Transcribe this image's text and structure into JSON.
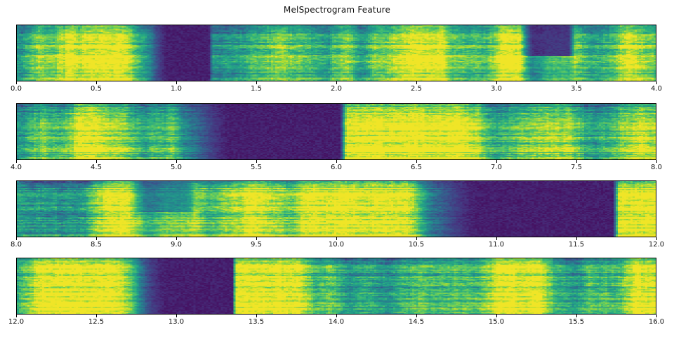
{
  "figure": {
    "title": "MelSpectrogram Feature",
    "background": "#ffffff",
    "axes_edge_color": "#000000",
    "tick_color": "#111111"
  },
  "colormap": {
    "name": "viridis",
    "stops": [
      "#440154",
      "#46327e",
      "#3b528b",
      "#2c728e",
      "#21918c",
      "#28ae80",
      "#5ec962",
      "#addc30",
      "#fde725"
    ]
  },
  "chart_data": [
    {
      "type": "heatmap",
      "subtype": "mel-spectrogram",
      "x_range": [
        0.0,
        4.0
      ],
      "x_ticks": [
        0.0,
        0.5,
        1.0,
        1.5,
        2.0,
        2.5,
        3.0,
        3.5,
        4.0
      ],
      "x_tick_labels": [
        "0.0",
        "0.5",
        "1.0",
        "1.5",
        "2.0",
        "2.5",
        "3.0",
        "3.5",
        "4.0"
      ],
      "xlabel": "",
      "ylabel": "",
      "y_ticks": [],
      "low_energy_regions": [
        {
          "start": 0.95,
          "end": 1.2,
          "fade_in": 0.22,
          "fade_out": 0.03,
          "depth": 1.0,
          "upper_bias": false
        },
        {
          "start": 3.24,
          "end": 3.45,
          "fade_in": 0.1,
          "fade_out": 0.06,
          "depth": 0.92,
          "upper_bias": true
        }
      ],
      "high_energy_bursts": [
        {
          "start": 0.3,
          "end": 0.52,
          "amp": 0.22
        },
        {
          "start": 2.6,
          "end": 2.9,
          "amp": 0.18
        }
      ],
      "texture_seed": 101
    },
    {
      "type": "heatmap",
      "subtype": "mel-spectrogram",
      "x_range": [
        4.0,
        8.0
      ],
      "x_ticks": [
        4.0,
        4.5,
        5.0,
        5.5,
        6.0,
        6.5,
        7.0,
        7.5,
        8.0
      ],
      "x_tick_labels": [
        "4.0",
        "4.5",
        "5.0",
        "5.5",
        "6.0",
        "6.5",
        "7.0",
        "7.5",
        "8.0"
      ],
      "xlabel": "",
      "ylabel": "",
      "y_ticks": [],
      "low_energy_regions": [
        {
          "start": 5.35,
          "end": 6.02,
          "fade_in": 0.45,
          "fade_out": 0.05,
          "depth": 1.0,
          "upper_bias": false
        }
      ],
      "high_energy_bursts": [
        {
          "start": 4.15,
          "end": 4.4,
          "amp": 0.22
        },
        {
          "start": 5.05,
          "end": 5.25,
          "amp": 0.18
        }
      ],
      "texture_seed": 202
    },
    {
      "type": "heatmap",
      "subtype": "mel-spectrogram",
      "x_range": [
        8.0,
        12.0
      ],
      "x_ticks": [
        8.0,
        8.5,
        9.0,
        9.5,
        10.0,
        10.5,
        11.0,
        11.5,
        12.0
      ],
      "x_tick_labels": [
        "8.0",
        "8.5",
        "9.0",
        "9.5",
        "10.0",
        "10.5",
        "11.0",
        "11.5",
        "12.0"
      ],
      "xlabel": "",
      "ylabel": "",
      "y_ticks": [],
      "low_energy_regions": [
        {
          "start": 8.82,
          "end": 9.05,
          "fade_in": 0.15,
          "fade_out": 0.12,
          "depth": 0.55,
          "upper_bias": true
        },
        {
          "start": 10.9,
          "end": 11.73,
          "fade_in": 0.55,
          "fade_out": 0.04,
          "depth": 1.0,
          "upper_bias": false
        }
      ],
      "high_energy_bursts": [
        {
          "start": 11.76,
          "end": 12.0,
          "amp": 0.35
        },
        {
          "start": 8.45,
          "end": 8.65,
          "amp": 0.18
        }
      ],
      "texture_seed": 303
    },
    {
      "type": "heatmap",
      "subtype": "mel-spectrogram",
      "x_range": [
        12.0,
        16.0
      ],
      "x_ticks": [
        12.0,
        12.5,
        13.0,
        13.5,
        14.0,
        14.5,
        15.0,
        15.5,
        16.0
      ],
      "x_tick_labels": [
        "12.0",
        "12.5",
        "13.0",
        "13.5",
        "14.0",
        "14.5",
        "15.0",
        "15.5",
        "16.0"
      ],
      "xlabel": "",
      "ylabel": "",
      "y_ticks": [],
      "low_energy_regions": [
        {
          "start": 12.95,
          "end": 13.35,
          "fade_in": 0.35,
          "fade_out": 0.02,
          "depth": 1.0,
          "upper_bias": false
        }
      ],
      "high_energy_bursts": [
        {
          "start": 12.1,
          "end": 12.35,
          "amp": 0.22
        },
        {
          "start": 13.4,
          "end": 13.6,
          "amp": 0.2
        },
        {
          "start": 14.35,
          "end": 14.55,
          "amp": 0.18
        }
      ],
      "texture_seed": 404
    }
  ]
}
